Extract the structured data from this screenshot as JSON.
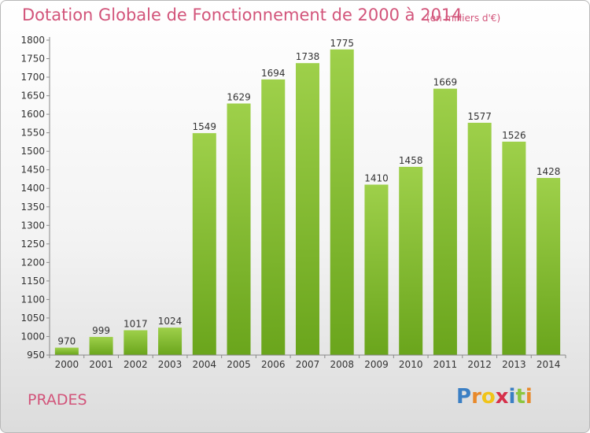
{
  "chart_data": {
    "type": "bar",
    "title": "Dotation Globale de Fonctionnement de 2000 à 2014",
    "subtitle": "(en milliers d'€)",
    "categories": [
      "2000",
      "2001",
      "2002",
      "2003",
      "2004",
      "2005",
      "2006",
      "2007",
      "2008",
      "2009",
      "2010",
      "2011",
      "2012",
      "2013",
      "2014"
    ],
    "values": [
      970,
      999,
      1017,
      1024,
      1549,
      1629,
      1694,
      1738,
      1775,
      1410,
      1458,
      1669,
      1577,
      1526,
      1428
    ],
    "ylim": [
      950,
      1800
    ],
    "ytick_step": 50,
    "grid": false,
    "bar_color_light": "#9ed04a",
    "bar_color_dark": "#6aa51c"
  },
  "footer": {
    "place": "PRADES",
    "brand": "Proxiti",
    "brand_colors": [
      "#3b7fc4",
      "#e8892b",
      "#f0c419",
      "#d6304a",
      "#3b7fc4",
      "#8cc63f",
      "#e8892b"
    ]
  }
}
